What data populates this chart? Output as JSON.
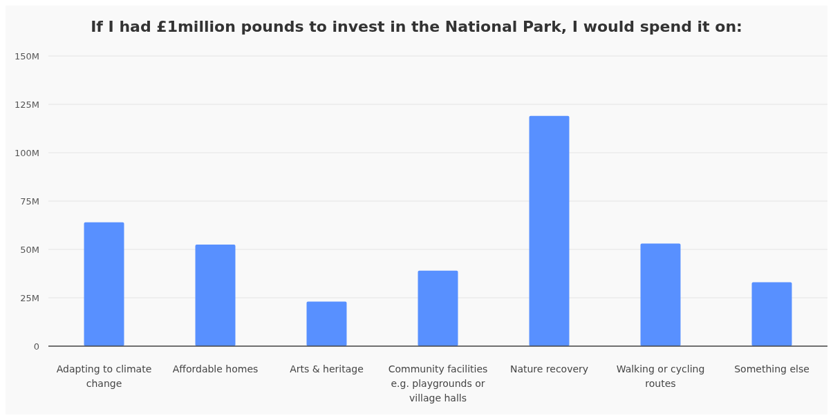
{
  "chart_data": {
    "type": "bar",
    "title": "If I had £1million pounds to invest in the National Park, I would spend it on:",
    "categories": [
      "Adapting to climate change",
      "Affordable homes",
      "Arts & heritage",
      "Community facilities e.g. playgrounds or village halls",
      "Nature recovery",
      "Walking or cycling routes",
      "Something else"
    ],
    "values": [
      64,
      52.5,
      23,
      39,
      119,
      53,
      33
    ],
    "color": "#5890ff",
    "ylim": [
      0,
      150
    ],
    "yticks": [
      0,
      {
        "value": 25,
        "label": "25M"
      },
      {
        "value": 50,
        "label": "50M"
      },
      {
        "value": 75,
        "label": "75M"
      },
      {
        "value": 100,
        "label": "100M"
      },
      {
        "value": 125,
        "label": "125M"
      },
      {
        "value": 150,
        "label": "150M"
      }
    ],
    "grid": "y"
  }
}
